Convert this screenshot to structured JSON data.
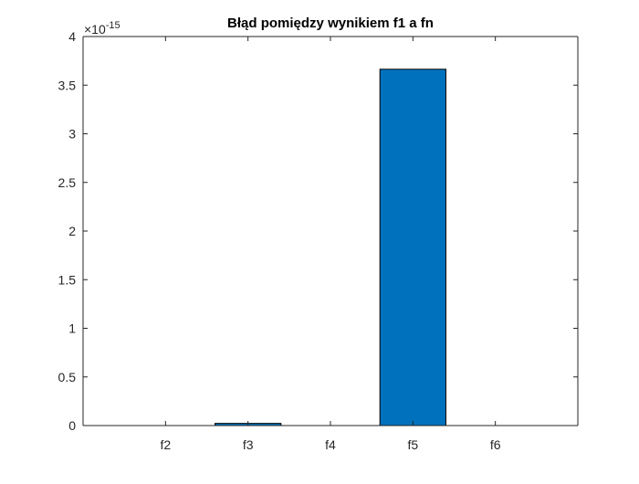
{
  "chart_data": {
    "type": "bar",
    "title": "Błąd pomiędzy wynikiem f1 a fn",
    "xlabel": "",
    "ylabel": "",
    "categories": [
      "f2",
      "f3",
      "f4",
      "f5",
      "f6"
    ],
    "values": [
      0,
      0.0222,
      0,
      3.6637,
      0
    ],
    "ylim": [
      0,
      4
    ],
    "yticks": [
      0,
      0.5,
      1,
      1.5,
      2,
      2.5,
      3,
      3.5,
      4
    ],
    "ytick_labels": [
      "0",
      "0.5",
      "1",
      "1.5",
      "2",
      "2.5",
      "3",
      "3.5",
      "4"
    ],
    "y_exponent_label": "×10",
    "y_exponent_power": "-15",
    "grid": false,
    "legend": "none",
    "bar_color": "#0072BD",
    "edge_color": "#000000"
  }
}
